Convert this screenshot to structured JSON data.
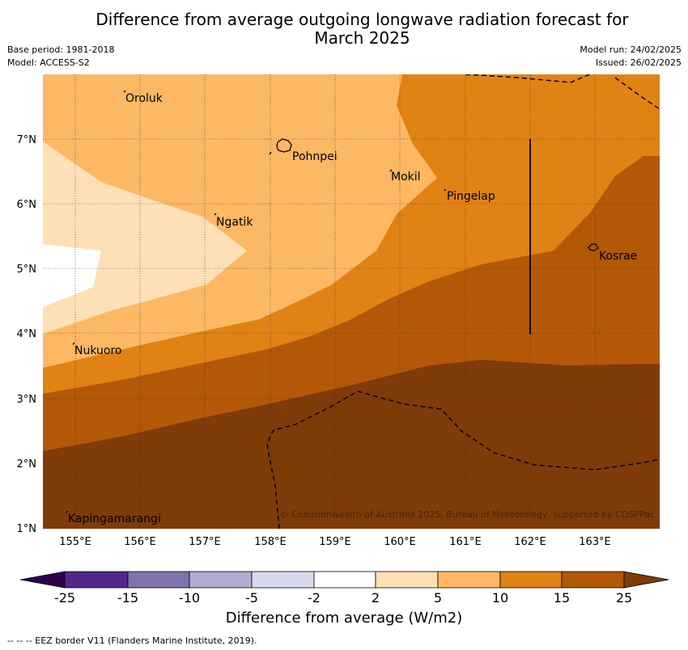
{
  "header": {
    "title_line1": "Difference from average outgoing longwave radiation forecast for",
    "title_line2": "March 2025",
    "base_period": "Base period: 1981-2018",
    "model": "Model: ACCESS-S2",
    "model_run": "Model run: 24/02/2025",
    "issued": "Issued: 26/02/2025"
  },
  "map": {
    "lon_labels": [
      "155°E",
      "156°E",
      "157°E",
      "158°E",
      "159°E",
      "160°E",
      "161°E",
      "162°E",
      "163°E"
    ],
    "lat_labels": [
      "7°N",
      "6°N",
      "5°N",
      "4°N",
      "3°N",
      "2°N",
      "1°N"
    ],
    "places": [
      {
        "name": "Oroluk"
      },
      {
        "name": "Pohnpei"
      },
      {
        "name": "Mokil"
      },
      {
        "name": "Pingelap"
      },
      {
        "name": "Ngatik"
      },
      {
        "name": "Kosrae"
      },
      {
        "name": "Nukuoro"
      },
      {
        "name": "Kapingamarangi"
      }
    ],
    "copyright": "© Commonwealth of Australia 2025, Bureau of Meteorology, supported by COSPPac"
  },
  "colorbar": {
    "ticks": [
      "-25",
      "-15",
      "-10",
      "-5",
      "-2",
      "2",
      "5",
      "10",
      "15",
      "25"
    ],
    "colors": [
      "#542788",
      "#8073ac",
      "#b2abd2",
      "#d8daeb",
      "#ffffff",
      "#fee0b6",
      "#fdb863",
      "#e08214",
      "#b35806",
      "#7f3b08"
    ],
    "title": "Difference from average (W/m2)"
  },
  "footnote": "--  --  -- EEZ border V11 (Flanders Marine Institute, 2019)."
}
